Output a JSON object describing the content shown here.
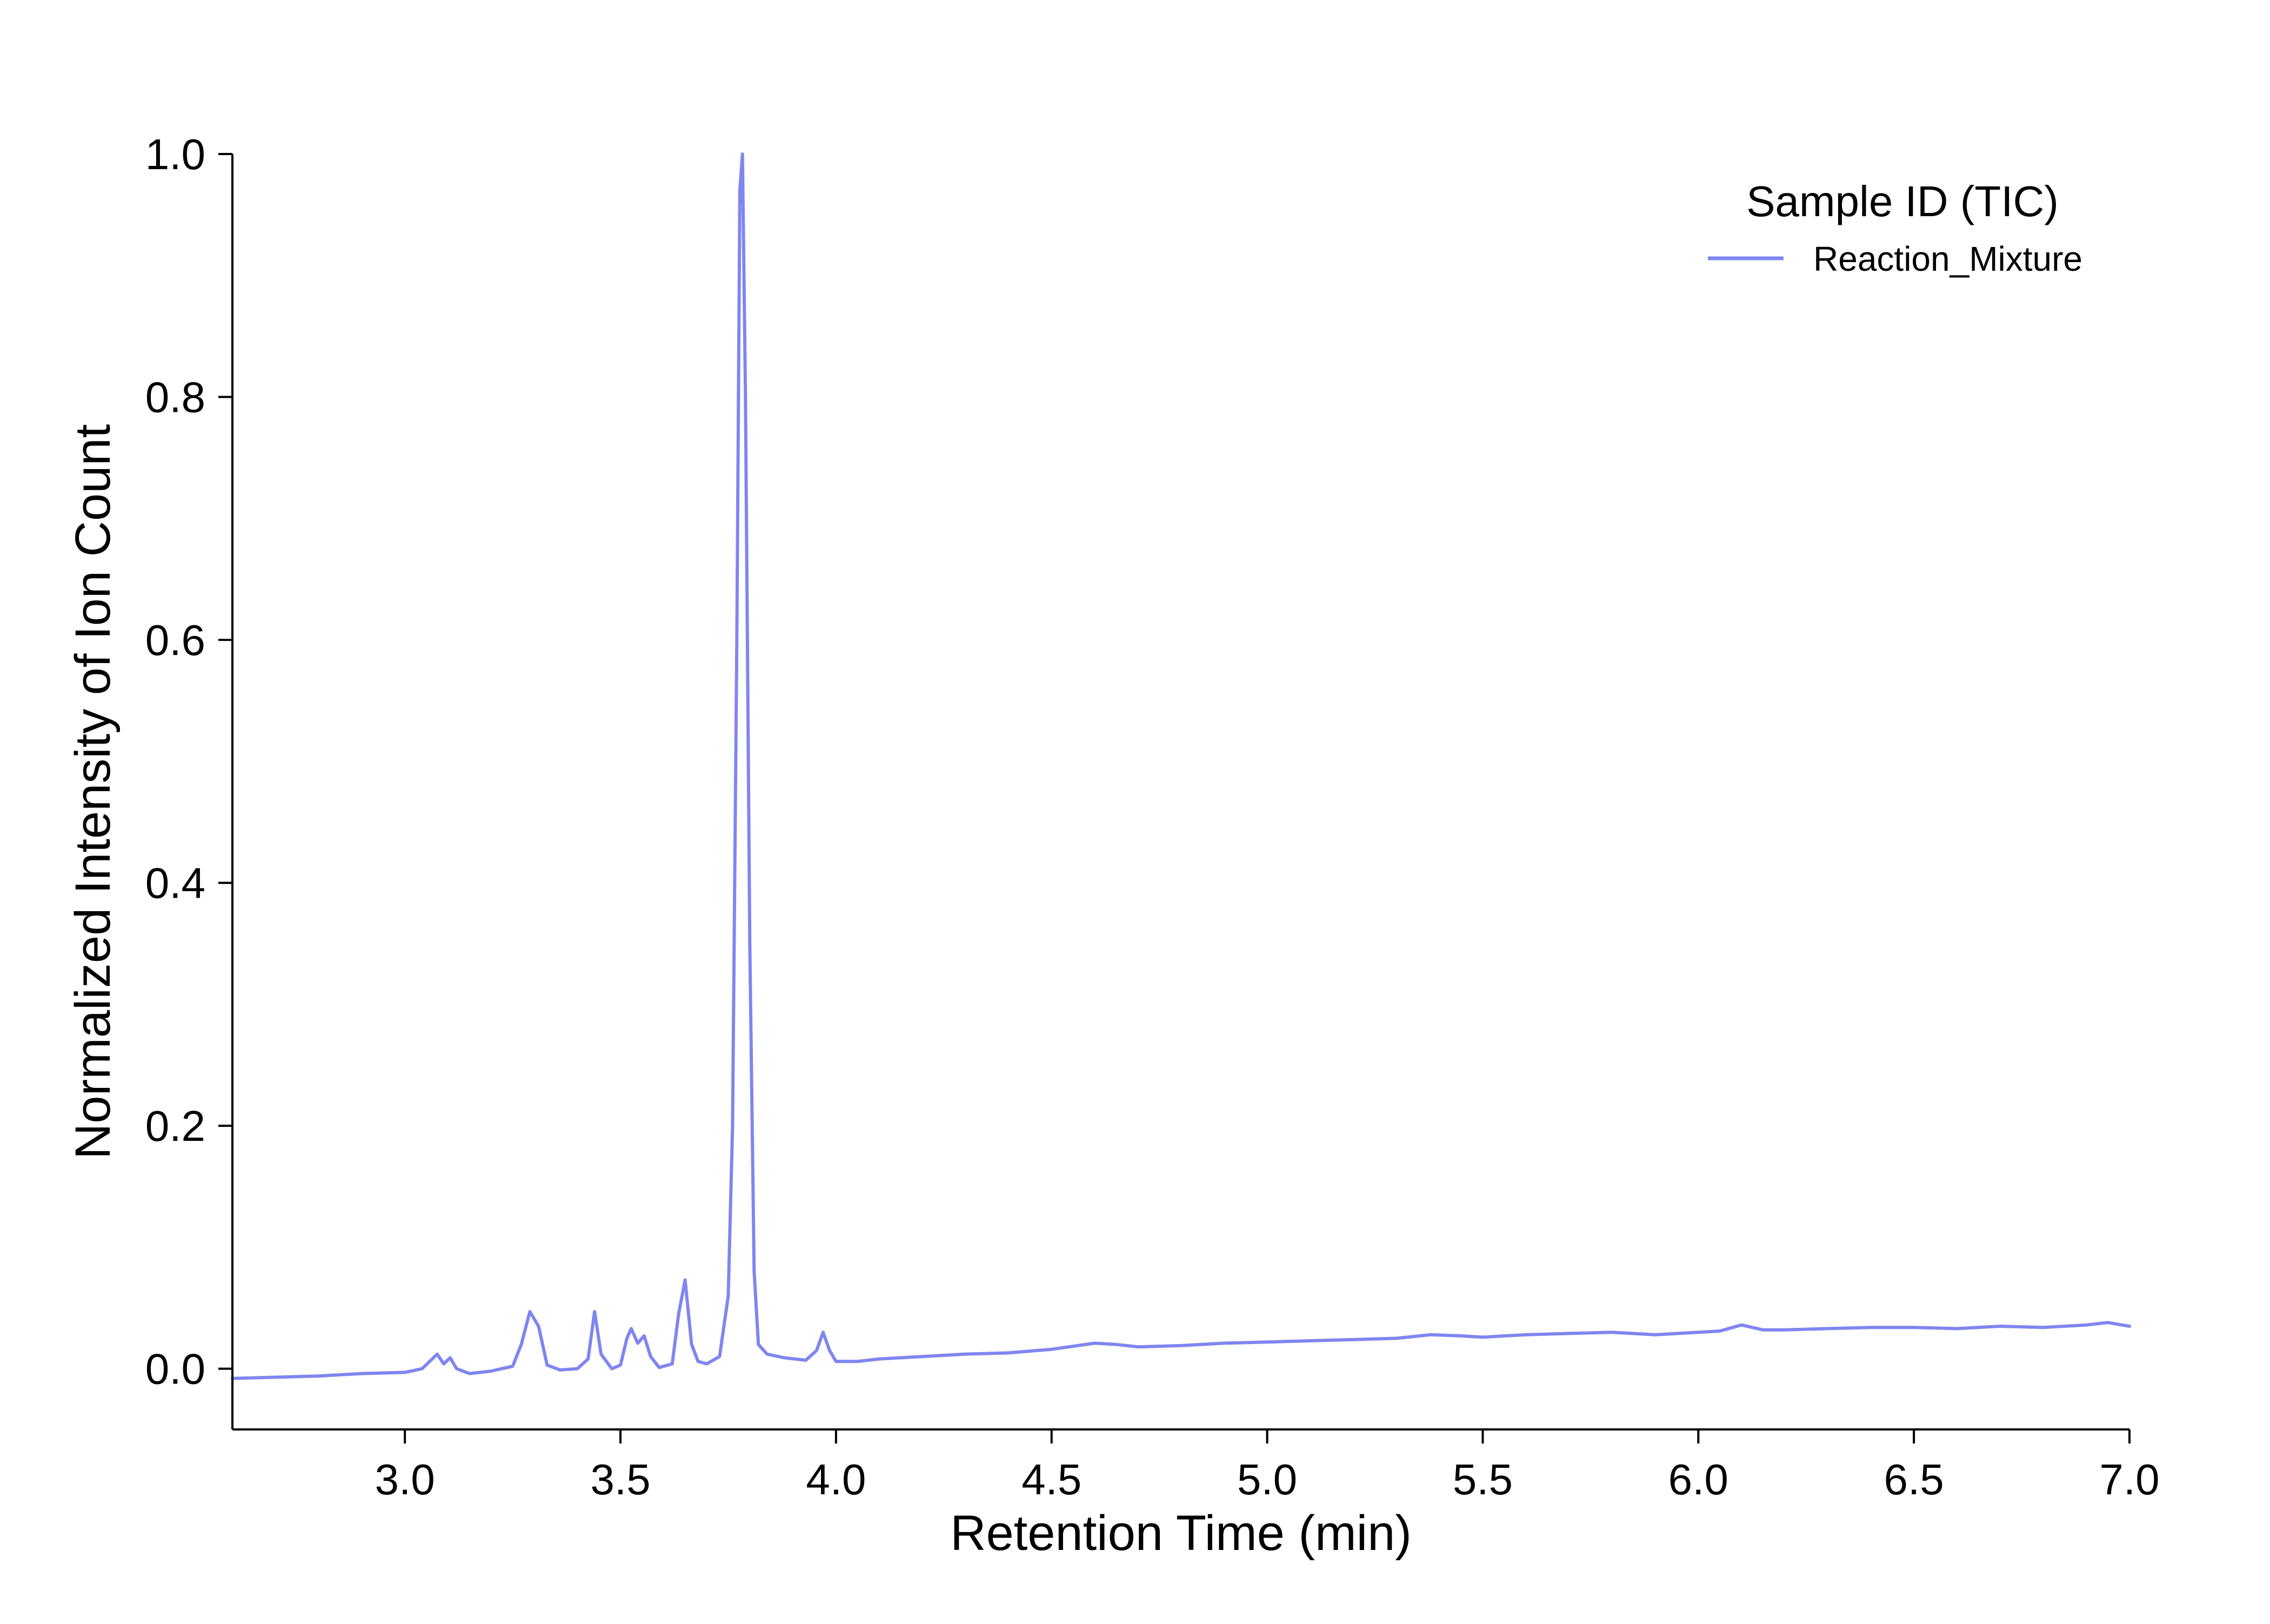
{
  "chart_data": {
    "type": "line",
    "title": "",
    "xlabel": "Retention Time (min)",
    "ylabel": "Normalized Intensity of Ion Count",
    "xlim": [
      2.6,
      7.0
    ],
    "ylim": [
      -0.05,
      1.0
    ],
    "xticks": [
      3.0,
      3.5,
      4.0,
      4.5,
      5.0,
      5.5,
      6.0,
      6.5,
      7.0
    ],
    "xtick_labels": [
      "3.0",
      "3.5",
      "4.0",
      "4.5",
      "5.0",
      "5.5",
      "6.0",
      "6.5",
      "7.0"
    ],
    "yticks": [
      0.0,
      0.2,
      0.4,
      0.6,
      0.8,
      1.0
    ],
    "ytick_labels": [
      "0.0",
      "0.2",
      "0.4",
      "0.6",
      "0.8",
      "1.0"
    ],
    "grid": false,
    "legend": {
      "title": "Sample ID (TIC)",
      "placement": "top-right"
    },
    "series": [
      {
        "name": "Reaction_Mixture",
        "color": "#7f86f0",
        "x": [
          2.6,
          2.7,
          2.8,
          2.9,
          3.0,
          3.04,
          3.075,
          3.09,
          3.105,
          3.12,
          3.15,
          3.2,
          3.25,
          3.27,
          3.29,
          3.31,
          3.33,
          3.36,
          3.4,
          3.425,
          3.44,
          3.455,
          3.48,
          3.5,
          3.515,
          3.525,
          3.54,
          3.555,
          3.57,
          3.59,
          3.62,
          3.635,
          3.65,
          3.665,
          3.68,
          3.7,
          3.73,
          3.75,
          3.76,
          3.77,
          3.777,
          3.783,
          3.79,
          3.8,
          3.81,
          3.82,
          3.84,
          3.88,
          3.93,
          3.955,
          3.97,
          3.985,
          4.0,
          4.05,
          4.1,
          4.2,
          4.3,
          4.4,
          4.5,
          4.6,
          4.65,
          4.7,
          4.8,
          4.9,
          5.0,
          5.1,
          5.2,
          5.3,
          5.38,
          5.45,
          5.5,
          5.6,
          5.7,
          5.8,
          5.9,
          6.0,
          6.05,
          6.1,
          6.15,
          6.2,
          6.3,
          6.4,
          6.5,
          6.6,
          6.7,
          6.8,
          6.9,
          6.95,
          7.0
        ],
        "y": [
          -0.008,
          -0.007,
          -0.006,
          -0.004,
          -0.003,
          0.0,
          0.012,
          0.004,
          0.009,
          0.0,
          -0.004,
          -0.002,
          0.002,
          0.02,
          0.047,
          0.035,
          0.003,
          -0.001,
          0.0,
          0.008,
          0.047,
          0.012,
          0.0,
          0.003,
          0.025,
          0.033,
          0.021,
          0.027,
          0.01,
          0.001,
          0.004,
          0.045,
          0.073,
          0.02,
          0.006,
          0.004,
          0.01,
          0.06,
          0.2,
          0.6,
          0.97,
          1.0,
          0.8,
          0.35,
          0.08,
          0.02,
          0.012,
          0.009,
          0.007,
          0.015,
          0.03,
          0.015,
          0.006,
          0.006,
          0.008,
          0.01,
          0.012,
          0.013,
          0.016,
          0.021,
          0.02,
          0.018,
          0.019,
          0.021,
          0.022,
          0.023,
          0.024,
          0.025,
          0.028,
          0.027,
          0.026,
          0.028,
          0.029,
          0.03,
          0.028,
          0.03,
          0.031,
          0.036,
          0.032,
          0.032,
          0.033,
          0.034,
          0.034,
          0.033,
          0.035,
          0.034,
          0.036,
          0.038,
          0.035
        ]
      }
    ]
  }
}
